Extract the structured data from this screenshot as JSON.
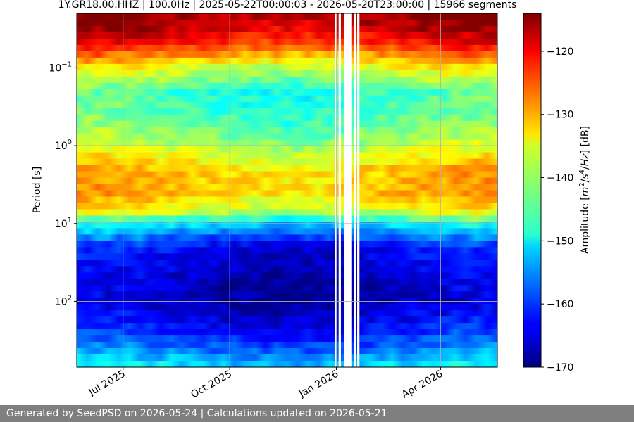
{
  "chart_data": {
    "type": "heatmap",
    "title": "1Y.GR18.00.HHZ | 100.0Hz | 2025-05-22T00:00:03 - 2026-05-20T23:00:00 | 15966 segments",
    "ylabel": "Period [s]",
    "yscale": "log",
    "ylim": [
      0.02,
      700
    ],
    "y_ticks": [
      {
        "value": 0.1,
        "base": "10",
        "exp": "−1"
      },
      {
        "value": 1,
        "base": "10",
        "exp": "0"
      },
      {
        "value": 10,
        "base": "10",
        "exp": "1"
      },
      {
        "value": 100,
        "base": "10",
        "exp": "2"
      }
    ],
    "xlim": [
      "2025-05-22",
      "2026-05-20"
    ],
    "x_ticks": [
      {
        "date": "2025-07-01",
        "label": "Jul 2025"
      },
      {
        "date": "2025-10-01",
        "label": "Oct 2025"
      },
      {
        "date": "2026-01-01",
        "label": "Jan 2026"
      },
      {
        "date": "2026-04-01",
        "label": "Apr 2026"
      }
    ],
    "grid": true,
    "colormap": "jet",
    "colorbar": {
      "label": "Amplitude [m²/s⁴/Hz] [dB]",
      "range": [
        -170,
        -114
      ],
      "ticks": [
        "−120",
        "−130",
        "−140",
        "−150",
        "−160",
        "−170"
      ],
      "tick_values": [
        -120,
        -130,
        -140,
        -150,
        -160,
        -170
      ]
    },
    "period_profile_db": [
      {
        "period": 0.02,
        "db": -115
      },
      {
        "period": 0.03,
        "db": -117
      },
      {
        "period": 0.05,
        "db": -123
      },
      {
        "period": 0.1,
        "db": -136
      },
      {
        "period": 0.2,
        "db": -146
      },
      {
        "period": 0.5,
        "db": -144
      },
      {
        "period": 1,
        "db": -139
      },
      {
        "period": 2,
        "db": -132
      },
      {
        "period": 4,
        "db": -131
      },
      {
        "period": 7,
        "db": -137
      },
      {
        "period": 10,
        "db": -150
      },
      {
        "period": 20,
        "db": -163
      },
      {
        "period": 50,
        "db": -166
      },
      {
        "period": 100,
        "db": -167
      },
      {
        "period": 200,
        "db": -163
      },
      {
        "period": 400,
        "db": -157
      },
      {
        "period": 700,
        "db": -150
      }
    ],
    "data_gaps": [
      {
        "start": "2025-12-31",
        "end": "2026-01-02"
      },
      {
        "start": "2026-01-03",
        "end": "2026-01-05"
      },
      {
        "start": "2026-01-08",
        "end": "2026-01-14"
      },
      {
        "start": "2026-01-16",
        "end": "2026-01-18"
      },
      {
        "start": "2026-01-19",
        "end": "2026-01-21"
      }
    ]
  },
  "footer": {
    "text": "Generated by SeedPSD on 2026-05-24 | Calculations updated on 2026-05-21"
  }
}
